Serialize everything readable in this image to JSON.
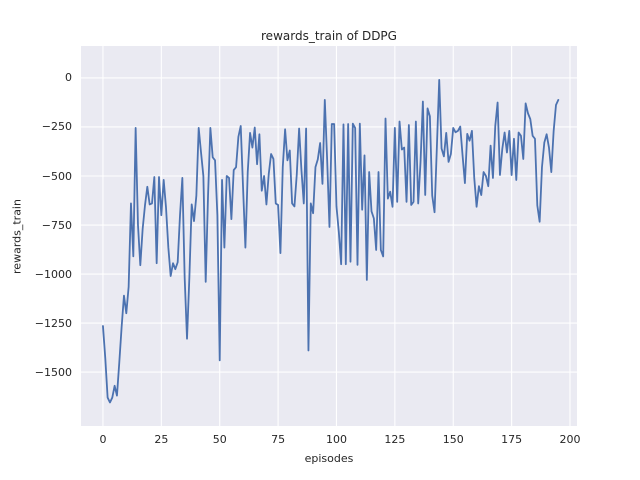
{
  "figure": {
    "title": "rewards_train of DDPG",
    "xlabel": "episodes",
    "ylabel": "rewards_train"
  },
  "chart_data": {
    "type": "line",
    "title": "rewards_train of DDPG",
    "xlabel": "episodes",
    "ylabel": "rewards_train",
    "legend": null,
    "grid": true,
    "x_ticks": [
      0,
      25,
      50,
      75,
      100,
      125,
      150,
      175,
      200
    ],
    "y_ticks": [
      0,
      -250,
      -500,
      -750,
      -1000,
      -1250,
      -1500
    ],
    "xlim": [
      -9.4,
      203
    ],
    "ylim": [
      -1775,
      163
    ],
    "x_start": 0,
    "x_step": 1,
    "series": [
      {
        "name": "rewards_train",
        "color": "#4C72B0",
        "values": [
          -1265,
          -1430,
          -1630,
          -1655,
          -1630,
          -1570,
          -1620,
          -1450,
          -1270,
          -1110,
          -1200,
          -1065,
          -640,
          -910,
          -255,
          -750,
          -955,
          -770,
          -650,
          -555,
          -645,
          -640,
          -505,
          -945,
          -505,
          -700,
          -520,
          -660,
          -865,
          -1010,
          -945,
          -975,
          -940,
          -700,
          -510,
          -1020,
          -1330,
          -1020,
          -645,
          -730,
          -600,
          -255,
          -380,
          -500,
          -1040,
          -600,
          -255,
          -405,
          -420,
          -700,
          -1440,
          -520,
          -865,
          -500,
          -510,
          -720,
          -470,
          -455,
          -300,
          -245,
          -560,
          -865,
          -480,
          -280,
          -355,
          -253,
          -440,
          -287,
          -575,
          -500,
          -645,
          -490,
          -388,
          -413,
          -640,
          -648,
          -893,
          -455,
          -262,
          -420,
          -370,
          -640,
          -655,
          -492,
          -258,
          -470,
          -640,
          -258,
          -1390,
          -640,
          -690,
          -455,
          -415,
          -332,
          -540,
          -112,
          -415,
          -760,
          -235,
          -235,
          -655,
          -785,
          -950,
          -237,
          -950,
          -235,
          -937,
          -233,
          -255,
          -953,
          -233,
          -672,
          -395,
          -1030,
          -480,
          -680,
          -716,
          -877,
          -480,
          -877,
          -910,
          -207,
          -615,
          -580,
          -657,
          -255,
          -632,
          -222,
          -365,
          -355,
          -632,
          -240,
          -648,
          -632,
          -222,
          -640,
          -428,
          -120,
          -597,
          -155,
          -195,
          -600,
          -685,
          -350,
          -10,
          -360,
          -400,
          -280,
          -428,
          -387,
          -255,
          -277,
          -270,
          -248,
          -395,
          -536,
          -285,
          -320,
          -270,
          -510,
          -657,
          -552,
          -597,
          -480,
          -500,
          -552,
          -345,
          -510,
          -245,
          -125,
          -495,
          -363,
          -278,
          -380,
          -270,
          -495,
          -310,
          -520,
          -278,
          -295,
          -413,
          -130,
          -180,
          -210,
          -295,
          -310,
          -650,
          -733,
          -455,
          -330,
          -287,
          -355,
          -480,
          -270,
          -138,
          -112
        ]
      }
    ],
    "style": {
      "fig_bg": "#FFFFFF",
      "axes_bg": "#EAEAF2",
      "grid_color": "#FFFFFF",
      "text_color": "#262626",
      "line_width": 1.8
    }
  }
}
